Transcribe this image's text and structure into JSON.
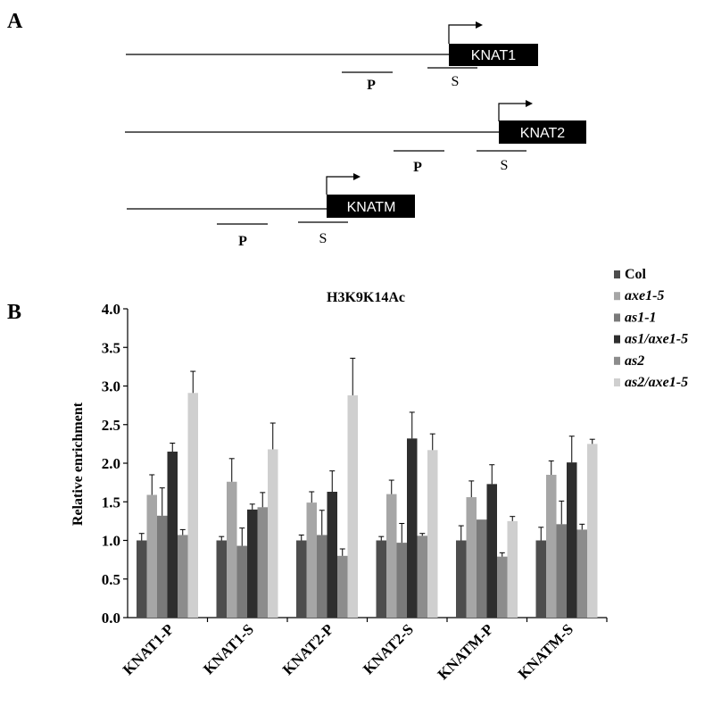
{
  "panel_a": {
    "label": "A",
    "genes": [
      {
        "name": "KNAT1",
        "p_label": "P",
        "s_label": "S"
      },
      {
        "name": "KNAT2",
        "p_label": "P",
        "s_label": "S"
      },
      {
        "name": "KNATM",
        "p_label": "P",
        "s_label": "S"
      }
    ]
  },
  "panel_b": {
    "label": "B"
  },
  "colors": {
    "series": [
      "#4d4d4d",
      "#a6a6a6",
      "#7a7a7a",
      "#2e2e2e",
      "#8c8c8c",
      "#cfcfcf"
    ],
    "axis": "#000000",
    "gene_box": "#000000",
    "gene_text": "#ffffff"
  },
  "chart_data": {
    "type": "bar",
    "title": "H3K9K14Ac",
    "xlabel": "",
    "ylabel": "Relative enrichment",
    "ylim": [
      0,
      4.0
    ],
    "yticks": [
      "0.0",
      "0.5",
      "1.0",
      "1.5",
      "2.0",
      "2.5",
      "3.0",
      "3.5",
      "4.0"
    ],
    "legend_position": "top-right",
    "grid": false,
    "categories": [
      "KNAT1-P",
      "KNAT1-S",
      "KNAT2-P",
      "KNAT2-S",
      "KNATM-P",
      "KNATM-S"
    ],
    "series": [
      {
        "name": "Col",
        "values": [
          1.0,
          1.0,
          1.0,
          1.0,
          1.0,
          1.0
        ],
        "errors": [
          0.09,
          0.05,
          0.07,
          0.05,
          0.19,
          0.17
        ]
      },
      {
        "name": "axe1-5",
        "values": [
          1.59,
          1.76,
          1.49,
          1.6,
          1.56,
          1.85
        ],
        "errors": [
          0.26,
          0.3,
          0.14,
          0.18,
          0.21,
          0.18
        ]
      },
      {
        "name": "as1-1",
        "values": [
          1.32,
          0.93,
          1.07,
          0.97,
          1.27,
          1.21
        ],
        "errors": [
          0.36,
          0.23,
          0.32,
          0.25,
          0.0,
          0.3
        ]
      },
      {
        "name": "as1/axe1-5",
        "values": [
          2.15,
          1.4,
          1.63,
          2.32,
          1.73,
          2.01
        ],
        "errors": [
          0.11,
          0.07,
          0.27,
          0.34,
          0.25,
          0.34
        ]
      },
      {
        "name": "as2",
        "values": [
          1.07,
          1.43,
          0.8,
          1.06,
          0.79,
          1.14
        ],
        "errors": [
          0.07,
          0.19,
          0.09,
          0.03,
          0.05,
          0.07
        ]
      },
      {
        "name": "as2/axe1-5",
        "values": [
          2.91,
          2.18,
          2.88,
          2.17,
          1.25,
          2.25
        ],
        "errors": [
          0.28,
          0.34,
          0.48,
          0.21,
          0.06,
          0.06
        ]
      }
    ]
  }
}
